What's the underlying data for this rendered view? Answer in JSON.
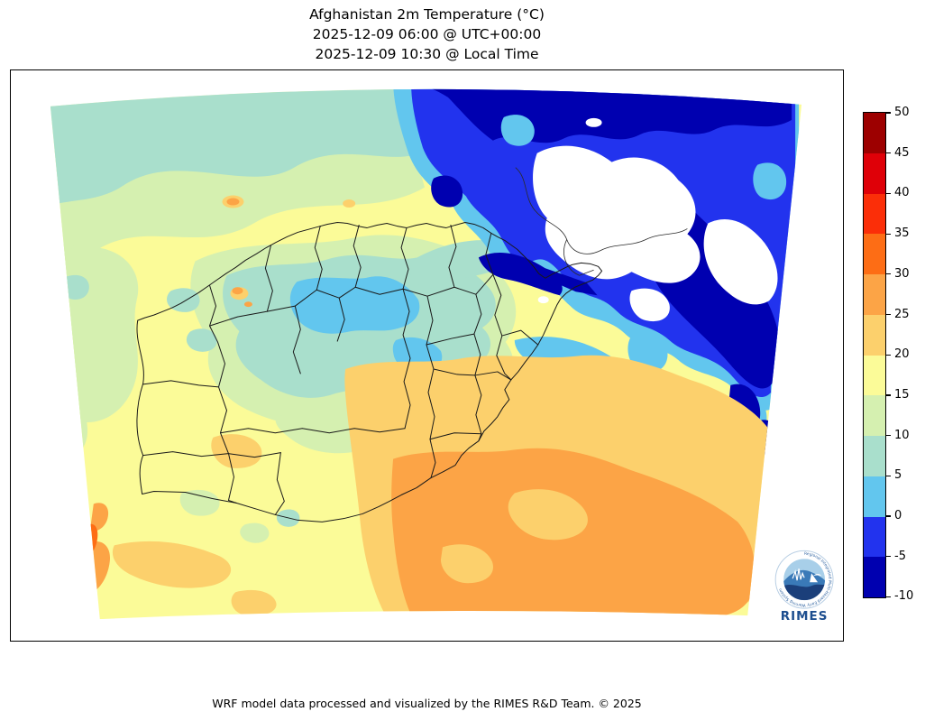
{
  "title": {
    "line1": "Afghanistan 2m Temperature (°C)",
    "line2": "2025-12-09 06:00 @ UTC+00:00",
    "line3": "2025-12-09 10:30 @ Local Time"
  },
  "footer": {
    "credit": "WRF model data processed and visualized by the RIMES R&D Team. © 2025"
  },
  "colorbar": {
    "unit": "°C",
    "ticks": [
      50,
      45,
      40,
      35,
      30,
      25,
      20,
      15,
      10,
      5,
      0,
      -5,
      -10
    ],
    "band_order_top_to_bottom": [
      "45_50",
      "40_45",
      "35_40",
      "30_35",
      "25_30",
      "20_25",
      "15_20",
      "10_15",
      "5_10",
      "0_5",
      "m5_0",
      "m10_m5"
    ],
    "band_colors": {
      "45_50": "#9d0000",
      "40_45": "#df0008",
      "35_40": "#fb2e08",
      "30_35": "#fd6d15",
      "25_30": "#fca446",
      "20_25": "#fcd06c",
      "15_20": "#fbfb98",
      "10_15": "#d5f0b0",
      "5_10": "#a9dfcc",
      "0_5": "#62c6ee",
      "m5_0": "#2233ee",
      "m10_m5": "#0000b0",
      "below_m10": "#ffffff"
    }
  },
  "logo": {
    "text": "RIMES",
    "ring_text": "Regional Integrated Multi-Hazard Early Warning System"
  }
}
